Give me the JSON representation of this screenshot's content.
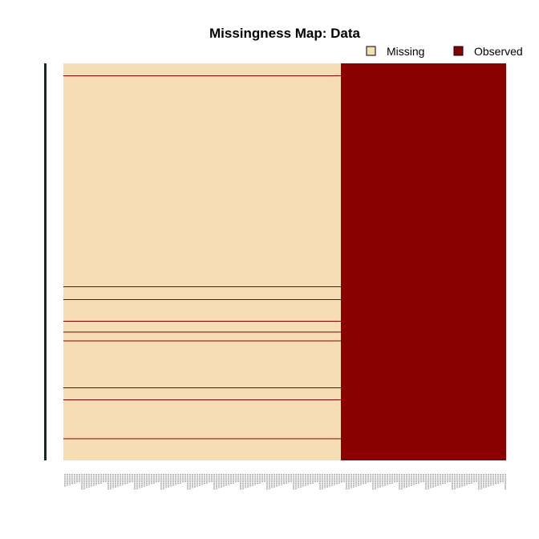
{
  "chart_data": {
    "type": "heatmap",
    "title": "Missingness Map: Data",
    "legend": {
      "placement": "top-right",
      "entries": [
        {
          "label": "Missing",
          "color": "#F5DEB3"
        },
        {
          "label": "Observed",
          "color": "#8B0000"
        }
      ]
    },
    "n_rows": 500,
    "n_columns": 1000,
    "observed_column_range": [
      628,
      1000
    ],
    "missing_column_range": [
      1,
      627
    ],
    "fully_observed_rows": [
      16,
      282,
      298,
      325,
      339,
      350,
      409,
      424,
      473
    ],
    "x_tick_labels": "unreadable (one label per column, too small to read)",
    "colors": {
      "missing": "#F5DEB3",
      "observed": "#8B0000",
      "row_axis": "#0f2a2a"
    }
  }
}
